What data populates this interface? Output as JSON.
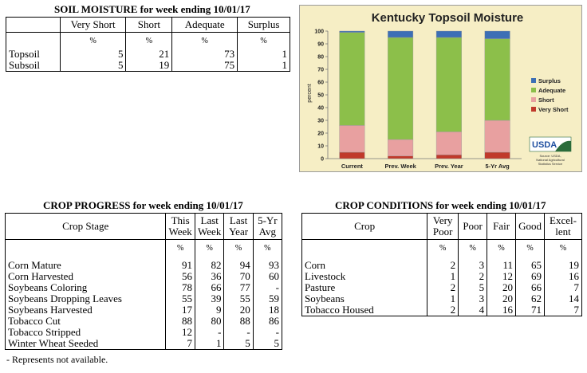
{
  "soil_moisture": {
    "title": "SOIL MOISTURE for week ending 10/01/17",
    "columns": [
      "",
      "Very Short",
      "Short",
      "Adequate",
      "Surplus"
    ],
    "units": [
      "",
      "%",
      "%",
      "%",
      "%"
    ],
    "rows": [
      [
        "Topsoil",
        "5",
        "21",
        "73",
        "1"
      ],
      [
        "Subsoil",
        "5",
        "19",
        "75",
        "1"
      ]
    ]
  },
  "crop_progress": {
    "title": "CROP PROGRESS for week ending 10/01/17",
    "columns": [
      "Crop Stage",
      "This Week",
      "Last Week",
      "Last Year",
      "5-Yr Avg"
    ],
    "units": [
      "",
      "%",
      "%",
      "%",
      "%"
    ],
    "rows": [
      [
        "Corn Mature",
        "91",
        "82",
        "94",
        "93"
      ],
      [
        "Corn Harvested",
        "56",
        "36",
        "70",
        "60"
      ],
      [
        "Soybeans Coloring",
        "78",
        "66",
        "77",
        "-"
      ],
      [
        "Soybeans Dropping Leaves",
        "55",
        "39",
        "55",
        "59"
      ],
      [
        "Soybeans Harvested",
        "17",
        "9",
        "20",
        "18"
      ],
      [
        "Tobacco Cut",
        "88",
        "80",
        "88",
        "86"
      ],
      [
        "Tobacco Stripped",
        "12",
        "-",
        "-",
        "-"
      ],
      [
        "Winter Wheat Seeded",
        "7",
        "1",
        "5",
        "5"
      ]
    ],
    "note": "- Represents not available."
  },
  "crop_conditions": {
    "title": "CROP CONDITIONS for week ending 10/01/17",
    "columns": [
      "Crop",
      "Very Poor",
      "Poor",
      "Fair",
      "Good",
      "Excel- lent"
    ],
    "units": [
      "",
      "%",
      "%",
      "%",
      "%",
      "%"
    ],
    "rows": [
      [
        "Corn",
        "2",
        "3",
        "11",
        "65",
        "19"
      ],
      [
        "Livestock",
        "1",
        "2",
        "12",
        "69",
        "16"
      ],
      [
        "Pasture",
        "2",
        "5",
        "20",
        "66",
        "7"
      ],
      [
        "Soybeans",
        "1",
        "3",
        "20",
        "62",
        "14"
      ],
      [
        "Tobacco Housed",
        "2",
        "4",
        "16",
        "71",
        "7"
      ]
    ]
  },
  "chart_data": {
    "type": "bar",
    "stacked": true,
    "title": "Kentucky Topsoil Moisture",
    "ylabel": "percent",
    "xlabel": "",
    "ylim": [
      0,
      100
    ],
    "yticks": [
      0,
      10,
      20,
      30,
      40,
      50,
      60,
      70,
      80,
      90,
      100
    ],
    "grid": false,
    "legend_position": "right",
    "categories": [
      "Current",
      "Prev. Week",
      "Prev. Year",
      "5-Yr Avg"
    ],
    "series": [
      {
        "name": "Very Short",
        "color": "#c0392b",
        "values": [
          5,
          2,
          3,
          5
        ]
      },
      {
        "name": "Short",
        "color": "#e8a0a0",
        "values": [
          21,
          13,
          18,
          25
        ]
      },
      {
        "name": "Adequate",
        "color": "#8cbf4a",
        "values": [
          73,
          80,
          74,
          64
        ]
      },
      {
        "name": "Surplus",
        "color": "#3d6fb5",
        "values": [
          1,
          5,
          5,
          6
        ]
      }
    ],
    "logo_text": "USDA",
    "source_text": [
      "Source: USDA,",
      "National Agricultural",
      "Statistics Service"
    ]
  }
}
